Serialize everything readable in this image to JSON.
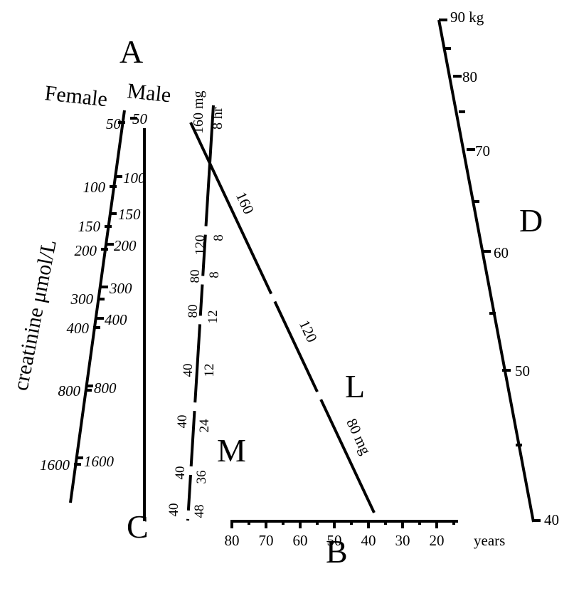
{
  "letters": {
    "A": "A",
    "B": "B",
    "C": "C",
    "D": "D",
    "L": "L",
    "M": "M"
  },
  "headings": {
    "female": "Female",
    "male": "Male",
    "creatinine": "creatinine μmol/L"
  },
  "female_ticks": [
    "50",
    "100",
    "150",
    "200",
    "300",
    "400",
    "800",
    "1600"
  ],
  "male_ticks": [
    "50",
    "100",
    "150",
    "200",
    "300",
    "400",
    "800",
    "1600"
  ],
  "age_ticks": [
    "80",
    "70",
    "60",
    "50",
    "40",
    "30",
    "20"
  ],
  "age_unit": "years",
  "weight_ticks": [
    "90 kg",
    "80",
    "70",
    "60",
    "50",
    "40"
  ],
  "l_scale": {
    "top": "160",
    "mid": "120",
    "bottom": "80 mg"
  },
  "m_scale": {
    "head_mg": "160 mg",
    "head_hr": "8 hr",
    "pairs": [
      {
        "mg": "120",
        "hr": "8"
      },
      {
        "mg": "80",
        "hr": "8"
      },
      {
        "mg": "80",
        "hr": "12"
      },
      {
        "mg": "40",
        "hr": "12"
      },
      {
        "mg": "40",
        "hr": "24"
      },
      {
        "mg": "40",
        "hr": "36"
      },
      {
        "mg": "40",
        "hr": "48"
      }
    ]
  }
}
